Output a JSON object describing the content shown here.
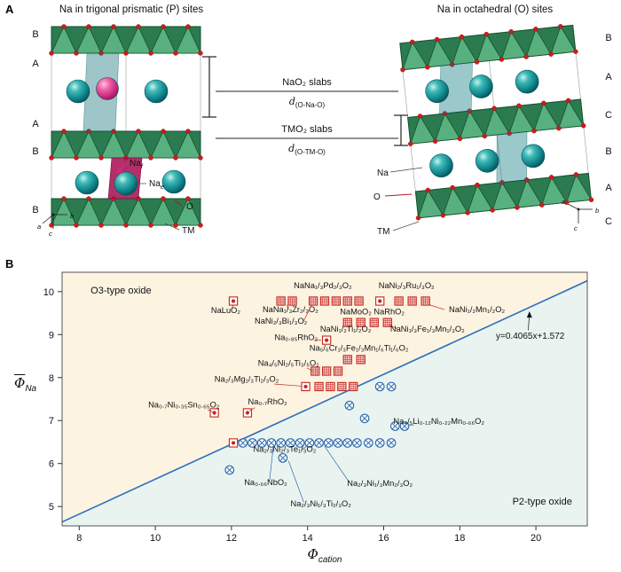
{
  "figure": {
    "panelA": {
      "label": "A",
      "left_title": "Na in trigonal prismatic (P) sites",
      "right_title": "Na in octahedral (O) sites",
      "left_stack": [
        "B",
        "A",
        "A",
        "B",
        "B"
      ],
      "right_stack": [
        "B",
        "A",
        "C",
        "B",
        "A",
        "C"
      ],
      "slab_labels": {
        "nao2": "NaO₂ slabs",
        "d_na_pre": "d",
        "d_na_sub": "(O-Na-O)",
        "tmo2": "TMO₂ slabs",
        "d_tm_pre": "d",
        "d_tm_sub": "(O-TM-O)"
      },
      "left_sites": {
        "na_f_pre": "Na",
        "na_f_sub": "f",
        "na_e_pre": "Na",
        "na_e_sub": "e",
        "o": "O",
        "tm": "TM"
      },
      "right_sites": {
        "na": "Na",
        "o": "O",
        "tm": "TM"
      },
      "axes": {
        "a": "a",
        "b": "b",
        "c": "c"
      }
    },
    "panelB": {
      "label": "B"
    }
  },
  "chart_data": {
    "type": "scatter",
    "xlabel_pre": "Φ",
    "xlabel_sub": "cation",
    "ylabel_pre": "Φ",
    "ylabel_sub": "Na",
    "xlim": [
      7.55,
      21.35
    ],
    "ylim": [
      4.55,
      10.45
    ],
    "xticks": [
      8,
      10,
      12,
      14,
      16,
      18,
      20
    ],
    "yticks": [
      5,
      6,
      7,
      8,
      9,
      10
    ],
    "grid": false,
    "legend": "none",
    "boundary": {
      "slope": 0.4065,
      "intercept": 1.572,
      "color": "#2e6fba"
    },
    "regions": {
      "o3_color": "#fdf3e1",
      "p2_color": "#e9f4f0"
    },
    "series": [
      {
        "name": "O3-type oxide",
        "color": "#c6261d",
        "marker": "square",
        "points": [
          [
            12.05,
            9.78,
            "d"
          ],
          [
            13.3,
            9.78,
            "h"
          ],
          [
            13.6,
            9.78,
            "h"
          ],
          [
            14.15,
            9.78,
            "h"
          ],
          [
            14.45,
            9.78,
            "h"
          ],
          [
            14.75,
            9.78,
            "h"
          ],
          [
            15.05,
            9.78,
            "h"
          ],
          [
            15.35,
            9.78,
            "h"
          ],
          [
            15.9,
            9.78,
            "d"
          ],
          [
            16.4,
            9.78,
            "h"
          ],
          [
            16.75,
            9.78,
            "h"
          ],
          [
            17.1,
            9.78,
            "h"
          ],
          [
            15.05,
            9.28,
            "h"
          ],
          [
            15.4,
            9.28,
            "h"
          ],
          [
            15.75,
            9.28,
            "h"
          ],
          [
            16.1,
            9.28,
            "h"
          ],
          [
            14.5,
            8.87,
            "d"
          ],
          [
            15.05,
            8.42,
            "h"
          ],
          [
            15.4,
            8.42,
            "h"
          ],
          [
            14.2,
            8.15,
            "h"
          ],
          [
            14.5,
            8.15,
            "h"
          ],
          [
            14.8,
            8.15,
            "h"
          ],
          [
            13.95,
            7.79,
            "d"
          ],
          [
            14.3,
            7.79,
            "h"
          ],
          [
            14.6,
            7.79,
            "h"
          ],
          [
            14.9,
            7.79,
            "h"
          ],
          [
            15.2,
            7.79,
            "h"
          ],
          [
            11.55,
            7.18,
            "d"
          ],
          [
            12.42,
            7.18,
            "d"
          ],
          [
            12.05,
            6.48,
            "d"
          ]
        ]
      },
      {
        "name": "P2-type oxide",
        "color": "#2d66ad",
        "marker": "circle-x",
        "points": [
          [
            15.9,
            7.79
          ],
          [
            16.2,
            7.79
          ],
          [
            15.1,
            7.35
          ],
          [
            15.5,
            7.05
          ],
          [
            16.3,
            6.87
          ],
          [
            16.55,
            6.87
          ],
          [
            12.3,
            6.48
          ],
          [
            12.55,
            6.48
          ],
          [
            12.8,
            6.48
          ],
          [
            13.05,
            6.48
          ],
          [
            13.3,
            6.48
          ],
          [
            13.55,
            6.48
          ],
          [
            13.8,
            6.48
          ],
          [
            14.05,
            6.48
          ],
          [
            14.3,
            6.48
          ],
          [
            14.55,
            6.48
          ],
          [
            14.8,
            6.48
          ],
          [
            15.05,
            6.48
          ],
          [
            15.3,
            6.48
          ],
          [
            15.6,
            6.48
          ],
          [
            15.9,
            6.48
          ],
          [
            16.2,
            6.48
          ],
          [
            13.35,
            6.13
          ],
          [
            11.95,
            5.85
          ]
        ]
      }
    ],
    "annotations": [
      {
        "text": "O3-type oxide",
        "x": 8.3,
        "y": 9.95,
        "anchor": "start",
        "color": "#d23b2f",
        "size": 11
      },
      {
        "text": "NaNa₁/₃Pd₂/₃O₂",
        "x": 14.4,
        "y": 10.08,
        "anchor": "middle",
        "color": "#c6261d"
      },
      {
        "text": "NaNi₂/₃Ru₁/₃O₂",
        "x": 16.6,
        "y": 10.08,
        "anchor": "middle",
        "color": "#c6261d"
      },
      {
        "text": "NaLuO₂",
        "x": 11.85,
        "y": 9.5,
        "anchor": "middle",
        "color": "#c6261d",
        "leader": [
          12.0,
          9.58,
          12.05,
          9.7
        ]
      },
      {
        "text": "NaNa₁/₃Zr₂/₃O₂",
        "x": 13.55,
        "y": 9.52,
        "anchor": "middle",
        "color": "#c6261d",
        "leader": [
          13.5,
          9.6,
          13.45,
          9.7
        ]
      },
      {
        "text": "NaNi₂/₃Bi₁/₃O₂",
        "x": 13.3,
        "y": 9.25,
        "anchor": "middle",
        "color": "#c6261d",
        "leader": [
          13.9,
          9.32,
          14.1,
          9.68
        ]
      },
      {
        "text": "NaNi₁/₂Mn₁/₂O₂",
        "x": 18.45,
        "y": 9.52,
        "anchor": "middle",
        "color": "#c6261d",
        "leader": [
          17.6,
          9.58,
          17.18,
          9.7
        ]
      },
      {
        "text": "NaMoO₂ NaRhO₂",
        "x": 15.7,
        "y": 9.47,
        "anchor": "middle",
        "color": "#c6261d"
      },
      {
        "text": "NaNi₁/₂Ti₁/₂O₂",
        "x": 15.0,
        "y": 9.07,
        "anchor": "middle",
        "color": "#c6261d"
      },
      {
        "text": "NaNi₁/₃Fe₁/₃Mn₁/₃O₂",
        "x": 17.15,
        "y": 9.07,
        "anchor": "middle",
        "color": "#c6261d",
        "leader": [
          16.35,
          9.14,
          16.12,
          9.24
        ]
      },
      {
        "text": "Na₀.₈₅RhO₂",
        "x": 13.7,
        "y": 8.87,
        "anchor": "middle",
        "color": "#c6261d",
        "leader": [
          14.18,
          8.87,
          14.36,
          8.87
        ]
      },
      {
        "text": "Na₅/₆Cr₁/₃Fe₁/₃Mn₁/₆Ti₁/₆O₂",
        "x": 15.35,
        "y": 8.62,
        "anchor": "middle",
        "color": "#c6261d"
      },
      {
        "text": "Na₄/₅Ni₂/₅Ti₃/₅O₂",
        "x": 13.5,
        "y": 8.27,
        "anchor": "middle",
        "color": "#c6261d",
        "leader": [
          13.98,
          8.22,
          14.12,
          8.17
        ]
      },
      {
        "text": "Na₂/₃Mg₁/₃Ti₂/₃O₂",
        "x": 12.4,
        "y": 7.9,
        "anchor": "middle",
        "color": "#c6261d",
        "leader": [
          13.12,
          7.85,
          13.85,
          7.8
        ]
      },
      {
        "text": "Na₀.₇Ni₀.₃₅Sn₀.₆₅O₂",
        "x": 10.75,
        "y": 7.3,
        "anchor": "middle",
        "color": "#c6261d",
        "leader": [
          11.38,
          7.25,
          11.52,
          7.2
        ]
      },
      {
        "text": "Na₀.₇RhO₂",
        "x": 12.95,
        "y": 7.38,
        "anchor": "middle",
        "color": "#c6261d",
        "leader": [
          12.62,
          7.3,
          12.47,
          7.22
        ]
      },
      {
        "text": "Na₄/₅Li₀.₁₂Ni₀.₂₂Mn₀.₆₆O₂",
        "x": 17.45,
        "y": 6.92,
        "anchor": "middle",
        "color": "#2d66ad",
        "leader": [
          16.8,
          6.9,
          16.62,
          6.88
        ]
      },
      {
        "text": "Na₂/₃Ni₂/₃Te₁/₃O₂",
        "x": 13.4,
        "y": 6.27,
        "anchor": "middle",
        "color": "#2d66ad",
        "leader": [
          13.85,
          6.32,
          14.0,
          6.42
        ]
      },
      {
        "text": "Na₀.₆₆NbO₂",
        "x": 12.9,
        "y": 5.5,
        "anchor": "middle",
        "color": "#2d66ad",
        "leader": [
          13.0,
          5.6,
          13.1,
          6.4
        ]
      },
      {
        "text": "Na₂/₃Ni₁/₃Mn₂/₃O₂",
        "x": 15.9,
        "y": 5.48,
        "anchor": "middle",
        "color": "#2d66ad",
        "leader": [
          15.1,
          5.56,
          14.45,
          6.4
        ]
      },
      {
        "text": "Na₂/₃Ni₁/₃Ti₂/₃O₂",
        "x": 14.35,
        "y": 5.0,
        "anchor": "middle",
        "color": "#2d66ad",
        "leader": [
          13.9,
          5.1,
          13.5,
          6.06
        ]
      },
      {
        "text": "P2-type oxide",
        "x": 20.95,
        "y": 5.05,
        "anchor": "end",
        "color": "#2d66ad",
        "size": 11
      },
      {
        "text": "y=0.4065x+1.572",
        "x": 18.95,
        "y": 8.9,
        "anchor": "start",
        "color": "#111111",
        "size": 10,
        "leader": [
          19.8,
          9.1,
          19.83,
          9.52
        ],
        "arrow": true
      }
    ]
  }
}
